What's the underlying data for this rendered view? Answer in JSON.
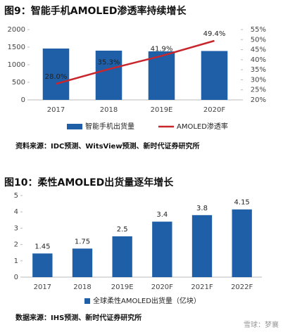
{
  "chart_data": [
    {
      "type": "bar",
      "title": "图9：智能手机AMOLED渗透率持续增长",
      "categories": [
        "2017",
        "2018",
        "2019E",
        "2020F"
      ],
      "series": [
        {
          "name": "智能手机出货量",
          "color": "#1f5fa8",
          "values": [
            1460,
            1400,
            1380,
            1390
          ]
        },
        {
          "name": "AMOLED渗透率",
          "type": "line",
          "axis": "y2",
          "color": "#c8262c",
          "values": [
            28.0,
            35.3,
            41.9,
            49.4
          ],
          "value_labels": [
            "28.0%",
            "35.3%",
            "41.9%",
            "49.4%"
          ]
        }
      ],
      "ylim": [
        0,
        2000
      ],
      "yticks": [
        0,
        500,
        1000,
        1500,
        2000
      ],
      "y2lim": [
        20,
        55
      ],
      "y2ticks": [
        {
          "value": 20,
          "label": "20%"
        },
        {
          "value": 25,
          "label": "25%"
        },
        {
          "value": 30,
          "label": "30%"
        },
        {
          "value": 35,
          "label": "35%"
        },
        {
          "value": 40,
          "label": "40%"
        },
        {
          "value": 45,
          "label": "45%"
        },
        {
          "value": 50,
          "label": "50%"
        },
        {
          "value": 55,
          "label": "55%"
        }
      ],
      "grid": false,
      "source": "资料来源：IDC预测、WitsView预测、新时代证券研究所"
    },
    {
      "type": "bar",
      "title": "图10：柔性AMOLED出货量逐年增长",
      "categories": [
        "2017",
        "2018",
        "2019E",
        "2020F",
        "2021F",
        "2022F"
      ],
      "series": [
        {
          "name": "全球柔性AMOLED出货量（亿块）",
          "color": "#1f5fa8",
          "values": [
            1.45,
            1.75,
            2.5,
            3.4,
            3.8,
            4.15
          ]
        }
      ],
      "ylim": [
        0,
        5
      ],
      "yticks": [
        0,
        1,
        2,
        3,
        4,
        5
      ],
      "grid": false,
      "data_labels": true,
      "source": "数据来源：IHS预测、新时代证券研究所"
    }
  ],
  "watermark": "雪球：梦襄"
}
